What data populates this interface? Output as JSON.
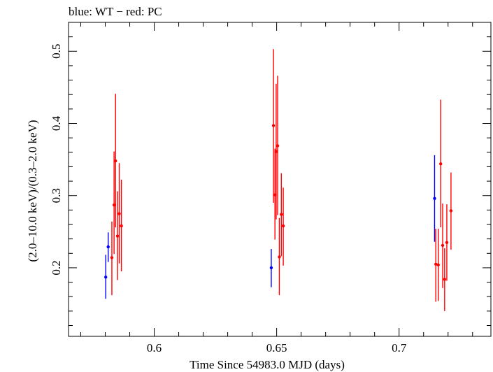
{
  "chart_data": {
    "type": "scatter",
    "title": "blue: WT − red: PC",
    "xlabel": "Time Since 54983.0 MJD (days)",
    "ylabel": "(2.0–10.0 keV)/(0.3–2.0 keV)",
    "xlim": [
      0.565,
      0.7375
    ],
    "ylim": [
      0.105,
      0.54
    ],
    "x_ticks": [
      0.6,
      0.65,
      0.7
    ],
    "x_tick_labels": [
      "0.6",
      "0.65",
      "0.7"
    ],
    "y_ticks": [
      0.2,
      0.3,
      0.4,
      0.5
    ],
    "y_tick_labels": [
      "0.2",
      "0.3",
      "0.4",
      "0.5"
    ],
    "grid": false,
    "series": [
      {
        "name": "WT",
        "color": "#0000ff",
        "points": [
          {
            "x": 0.5802,
            "y": 0.187,
            "ylo": 0.157,
            "yhi": 0.218
          },
          {
            "x": 0.5812,
            "y": 0.229,
            "ylo": 0.208,
            "yhi": 0.249
          },
          {
            "x": 0.6478,
            "y": 0.2,
            "ylo": 0.173,
            "yhi": 0.226
          },
          {
            "x": 0.7145,
            "y": 0.296,
            "ylo": 0.236,
            "yhi": 0.356
          }
        ]
      },
      {
        "name": "PC",
        "color": "#ff0000",
        "points": [
          {
            "x": 0.5827,
            "y": 0.214,
            "ylo": 0.162,
            "yhi": 0.264
          },
          {
            "x": 0.5836,
            "y": 0.287,
            "ylo": 0.219,
            "yhi": 0.361
          },
          {
            "x": 0.5842,
            "y": 0.348,
            "ylo": 0.256,
            "yhi": 0.441
          },
          {
            "x": 0.585,
            "y": 0.244,
            "ylo": 0.183,
            "yhi": 0.306
          },
          {
            "x": 0.5857,
            "y": 0.275,
            "ylo": 0.206,
            "yhi": 0.345
          },
          {
            "x": 0.5866,
            "y": 0.258,
            "ylo": 0.195,
            "yhi": 0.322
          },
          {
            "x": 0.6487,
            "y": 0.397,
            "ylo": 0.29,
            "yhi": 0.503
          },
          {
            "x": 0.6493,
            "y": 0.301,
            "ylo": 0.239,
            "yhi": 0.365
          },
          {
            "x": 0.6498,
            "y": 0.361,
            "ylo": 0.267,
            "yhi": 0.455
          },
          {
            "x": 0.6504,
            "y": 0.369,
            "ylo": 0.273,
            "yhi": 0.466
          },
          {
            "x": 0.6511,
            "y": 0.215,
            "ylo": 0.162,
            "yhi": 0.269
          },
          {
            "x": 0.6519,
            "y": 0.274,
            "ylo": 0.216,
            "yhi": 0.331
          },
          {
            "x": 0.6527,
            "y": 0.258,
            "ylo": 0.203,
            "yhi": 0.311
          },
          {
            "x": 0.715,
            "y": 0.205,
            "ylo": 0.153,
            "yhi": 0.254
          },
          {
            "x": 0.716,
            "y": 0.204,
            "ylo": 0.154,
            "yhi": 0.254
          },
          {
            "x": 0.717,
            "y": 0.344,
            "ylo": 0.256,
            "yhi": 0.433
          },
          {
            "x": 0.7178,
            "y": 0.231,
            "ylo": 0.172,
            "yhi": 0.289
          },
          {
            "x": 0.7186,
            "y": 0.184,
            "ylo": 0.14,
            "yhi": 0.227
          },
          {
            "x": 0.7195,
            "y": 0.235,
            "ylo": 0.182,
            "yhi": 0.288
          },
          {
            "x": 0.7212,
            "y": 0.279,
            "ylo": 0.225,
            "yhi": 0.332
          }
        ]
      }
    ]
  }
}
